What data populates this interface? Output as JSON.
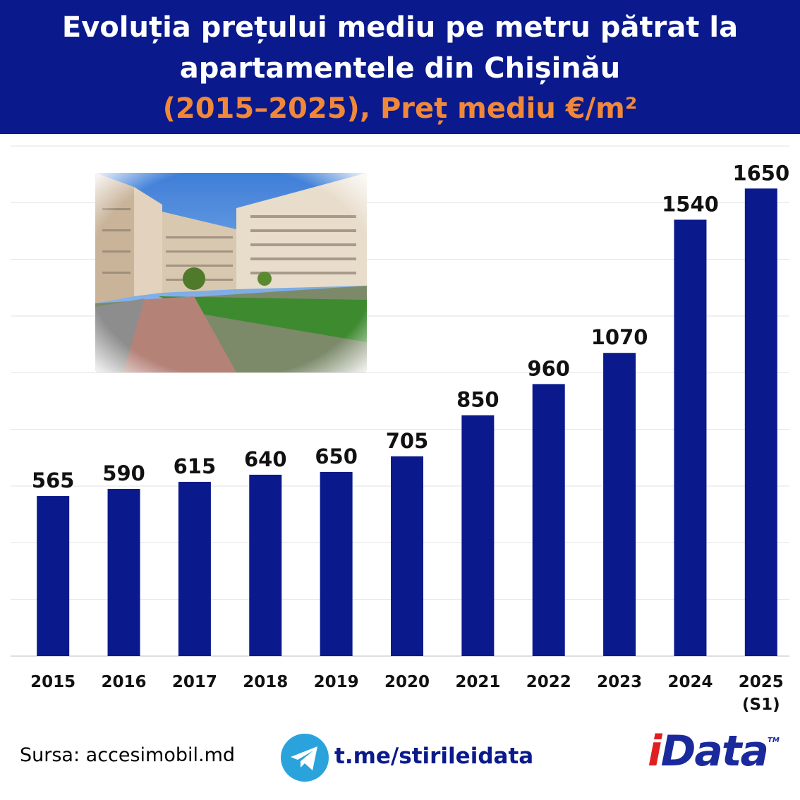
{
  "header": {
    "title_line1": "Evoluția prețului mediu pe metru pătrat la",
    "title_line2": "apartamentele din Chișinău",
    "subtitle": "(2015–2025), Preț mediu €/m²"
  },
  "colors": {
    "header_bg": "#0a1a8c",
    "bar": "#0a1a8c",
    "subtitle": "#f0883a",
    "telegram": "#2aa3dd",
    "logo_i": "#e02020"
  },
  "chart_data": {
    "type": "bar",
    "categories": [
      "2015",
      "2016",
      "2017",
      "2018",
      "2019",
      "2020",
      "2021",
      "2022",
      "2023",
      "2024",
      "2025"
    ],
    "category_sublabels": [
      "",
      "",
      "",
      "",
      "",
      "",
      "",
      "",
      "",
      "",
      "(S1)"
    ],
    "values": [
      565,
      590,
      615,
      640,
      650,
      705,
      850,
      960,
      1070,
      1540,
      1650
    ],
    "ylim": [
      0,
      1800
    ],
    "grid": true,
    "data_labels": true
  },
  "footer": {
    "source": "Sursa: accesimobil.md",
    "telegram_icon": "telegram-icon",
    "telegram_link": "t.me/stirileidata",
    "logo_i": "i",
    "logo_rest": "Data",
    "logo_tm": "TM"
  }
}
